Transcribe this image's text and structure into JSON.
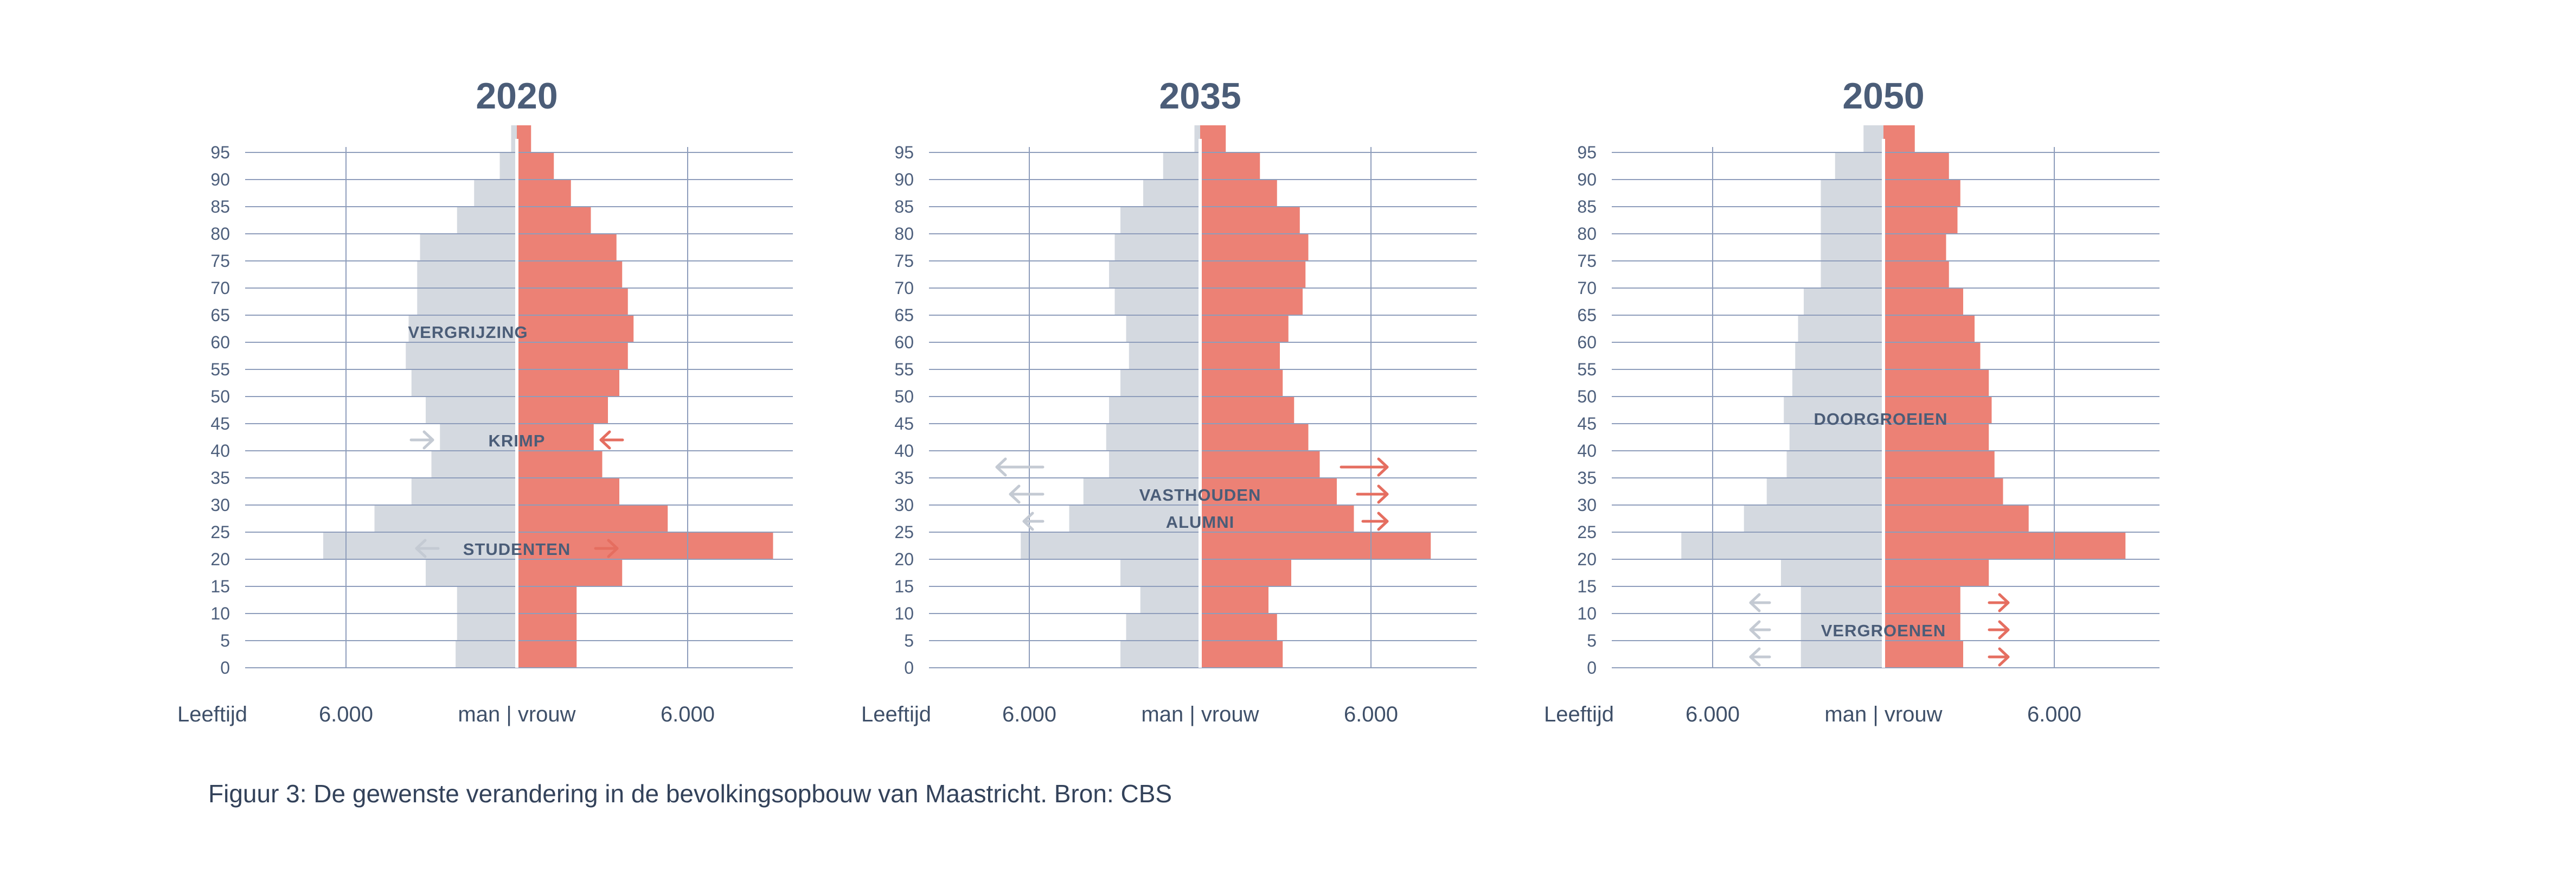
{
  "caption": "Figuur 3: De gewenste verandering in de bevolkingsopbouw van Maastricht. Bron: CBS",
  "colors": {
    "man": "#d4d9e0",
    "vrouw": "#ec8175",
    "grid": "#8e9dbb",
    "text": "#4b5d78",
    "arrow_grey": "#c4cad3",
    "arrow_red": "#e56e60"
  },
  "chart_data": [
    {
      "type": "bar",
      "orientation": "population-pyramid",
      "title": "2020",
      "xlabel": "man | vrouw",
      "ylabel": "Leeftijd",
      "x_tick_labels": [
        "6.000",
        "6.000"
      ],
      "x_ticks": [
        -6000,
        6000
      ],
      "xlim": [
        -9600,
        9600
      ],
      "categories": [
        0,
        5,
        10,
        15,
        20,
        25,
        30,
        35,
        40,
        45,
        50,
        55,
        60,
        65,
        70,
        75,
        80,
        85,
        90,
        95
      ],
      "series": [
        {
          "name": "man",
          "values": [
            2150,
            2100,
            2100,
            3200,
            6800,
            5000,
            3700,
            3000,
            2700,
            3200,
            3700,
            3900,
            3800,
            3500,
            3500,
            3400,
            2100,
            1500,
            600,
            200
          ]
        },
        {
          "name": "vrouw",
          "values": [
            2100,
            2100,
            2100,
            3700,
            9000,
            5300,
            3600,
            3000,
            2700,
            3200,
            3600,
            3900,
            4100,
            3900,
            3700,
            3500,
            2600,
            1900,
            1300,
            500
          ]
        }
      ],
      "annotations": [
        {
          "text": "VERGRIJZING",
          "age": 62
        },
        {
          "text": "KRIMP",
          "age": 42,
          "arrows": "inward"
        },
        {
          "text": "STUDENTEN",
          "age": 22,
          "arrows": "outward"
        }
      ]
    },
    {
      "type": "bar",
      "orientation": "population-pyramid",
      "title": "2035",
      "xlabel": "man | vrouw",
      "ylabel": "Leeftijd",
      "x_tick_labels": [
        "6.000",
        "6.000"
      ],
      "x_ticks": [
        -6000,
        6000
      ],
      "xlim": [
        -9600,
        9600
      ],
      "categories": [
        0,
        5,
        10,
        15,
        20,
        25,
        30,
        35,
        40,
        45,
        50,
        55,
        60,
        65,
        70,
        75,
        80,
        85,
        90,
        95
      ],
      "series": [
        {
          "name": "man",
          "values": [
            2800,
            2600,
            2100,
            2800,
            6300,
            4600,
            4100,
            3200,
            3300,
            3200,
            2800,
            2500,
            2600,
            3000,
            3200,
            3000,
            2800,
            2000,
            1300,
            200
          ]
        },
        {
          "name": "vrouw",
          "values": [
            2900,
            2700,
            2400,
            3200,
            8100,
            5400,
            4800,
            4200,
            3800,
            3300,
            2900,
            2800,
            3100,
            3600,
            3700,
            3800,
            3500,
            2700,
            2100,
            900
          ]
        }
      ],
      "annotations": [
        {
          "text": "VASTHOUDEN",
          "age": 32,
          "arrows": "outward"
        },
        {
          "text": "ALUMNI",
          "age": 27
        }
      ]
    },
    {
      "type": "bar",
      "orientation": "population-pyramid",
      "title": "2050",
      "xlabel": "man | vrouw",
      "ylabel": "Leeftijd",
      "x_tick_labels": [
        "6.000",
        "6.000"
      ],
      "x_ticks": [
        -6000,
        6000
      ],
      "xlim": [
        -9600,
        9600
      ],
      "categories": [
        0,
        5,
        10,
        15,
        20,
        25,
        30,
        35,
        40,
        45,
        50,
        55,
        60,
        65,
        70,
        75,
        80,
        85,
        90,
        95
      ],
      "series": [
        {
          "name": "man",
          "values": [
            2900,
            2900,
            2900,
            3600,
            7100,
            4900,
            4100,
            3400,
            3300,
            3500,
            3200,
            3100,
            3000,
            2800,
            2200,
            2200,
            2200,
            2200,
            1700,
            700
          ]
        },
        {
          "name": "vrouw",
          "values": [
            2800,
            2700,
            2700,
            3700,
            8500,
            5100,
            4200,
            3900,
            3700,
            3800,
            3700,
            3400,
            3200,
            2800,
            2300,
            2200,
            2600,
            2700,
            2300,
            1100
          ]
        }
      ],
      "annotations": [
        {
          "text": "DOORGROEIEN",
          "age": 46
        },
        {
          "text": "VERGROENEN",
          "age": 7,
          "arrows": "outward"
        }
      ]
    }
  ]
}
